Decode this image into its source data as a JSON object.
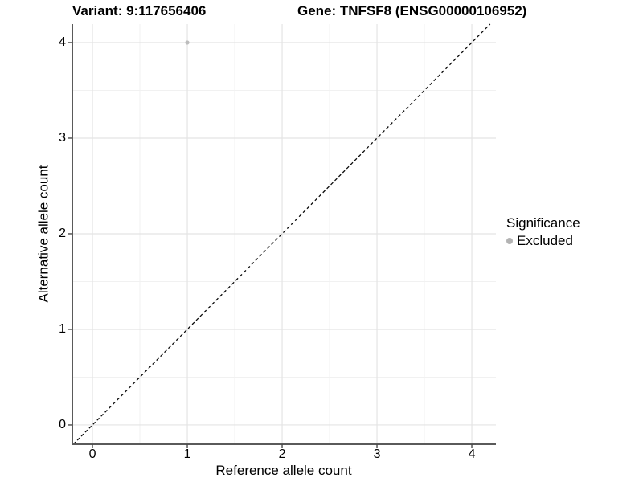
{
  "header": {
    "variant_title": "Variant: 9:117656406",
    "gene_title": "Gene: TNFSF8 (ENSG00000106952)"
  },
  "chart_data": {
    "type": "scatter",
    "title": "Variant: 9:117656406   Gene: TNFSF8 (ENSG00000106952)",
    "xlabel": "Reference allele count",
    "ylabel": "Alternative allele count",
    "xlim": [
      -0.212,
      4.254
    ],
    "ylim": [
      -0.202,
      4.193
    ],
    "x_ticks": [
      0,
      1,
      2,
      3,
      4
    ],
    "y_ticks": [
      0,
      1,
      2,
      3,
      4
    ],
    "minor_grid_offset": 0.5,
    "grid": "major+minor",
    "series": [
      {
        "name": "Excluded",
        "points": [
          {
            "x": 1,
            "y": 4
          }
        ],
        "color": "#bdbdbd",
        "point_radius": 2.6
      }
    ],
    "reference_line": {
      "type": "identity",
      "equation": "y = x",
      "style": "dashed",
      "color": "#0a0a0a"
    },
    "legend": {
      "title": "Significance",
      "position": "right",
      "items": [
        {
          "label": "Excluded",
          "color": "#b3b3b3"
        }
      ]
    }
  },
  "colors": {
    "background": "#ffffff",
    "grid_major": "#e4e4e4",
    "grid_minor": "#f1f1f1",
    "axis_line": "#5a5a5a",
    "tick_mark": "#4a4a4a",
    "text": "#000000"
  }
}
